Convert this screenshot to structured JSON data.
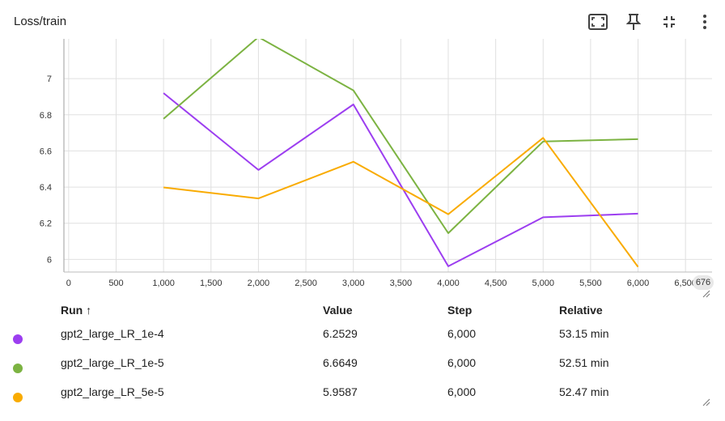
{
  "header": {
    "title": "Loss/train"
  },
  "toolbar": {
    "icons": [
      "fit-domain-icon",
      "pin-icon",
      "collapse-icon",
      "more-vert-icon"
    ]
  },
  "chart_data": {
    "type": "line",
    "title": "",
    "xlabel": "",
    "ylabel": "",
    "xlim": [
      -50,
      6780
    ],
    "ylim": [
      5.93,
      7.22
    ],
    "x_ticks": [
      0,
      500,
      1000,
      1500,
      2000,
      2500,
      3000,
      3500,
      4000,
      4500,
      5000,
      5500,
      6000,
      6500
    ],
    "x_tick_labels": [
      "0",
      "500",
      "1,000",
      "1,500",
      "2,000",
      "2,500",
      "3,000",
      "3,500",
      "4,000",
      "4,500",
      "5,000",
      "5,500",
      "6,000",
      "6,500"
    ],
    "y_ticks": [
      6,
      6.2,
      6.4,
      6.6,
      6.8,
      7
    ],
    "y_tick_labels": [
      "6",
      "6.2",
      "6.4",
      "6.6",
      "6.8",
      "7"
    ],
    "x_edge_badge": "676",
    "grid": true,
    "series": [
      {
        "name": "gpt2_large_LR_1e-4",
        "color": "#9c3ef0",
        "x": [
          1000,
          2000,
          3000,
          4000,
          5000,
          6000
        ],
        "y": [
          6.92,
          6.495,
          6.857,
          5.962,
          6.233,
          6.2529
        ]
      },
      {
        "name": "gpt2_large_LR_1e-5",
        "color": "#7cb342",
        "x": [
          1000,
          2000,
          3000,
          4000,
          5000,
          6000
        ],
        "y": [
          6.778,
          7.23,
          6.935,
          6.145,
          6.652,
          6.6649
        ]
      },
      {
        "name": "gpt2_large_LR_5e-5",
        "color": "#f9ab00",
        "x": [
          1000,
          2000,
          3000,
          4000,
          5000,
          6000
        ],
        "y": [
          6.398,
          6.337,
          6.54,
          6.25,
          6.672,
          5.9587
        ]
      }
    ]
  },
  "runs_table": {
    "headers": {
      "run": "Run ↑",
      "value": "Value",
      "step": "Step",
      "relative": "Relative"
    },
    "rows": [
      {
        "run": "gpt2_large_LR_1e-4",
        "value": "6.2529",
        "step": "6,000",
        "relative": "53.15 min",
        "color": "#9c3ef0"
      },
      {
        "run": "gpt2_large_LR_1e-5",
        "value": "6.6649",
        "step": "6,000",
        "relative": "52.51 min",
        "color": "#7cb342"
      },
      {
        "run": "gpt2_large_LR_5e-5",
        "value": "5.9587",
        "step": "6,000",
        "relative": "52.47 min",
        "color": "#f9ab00"
      }
    ]
  }
}
